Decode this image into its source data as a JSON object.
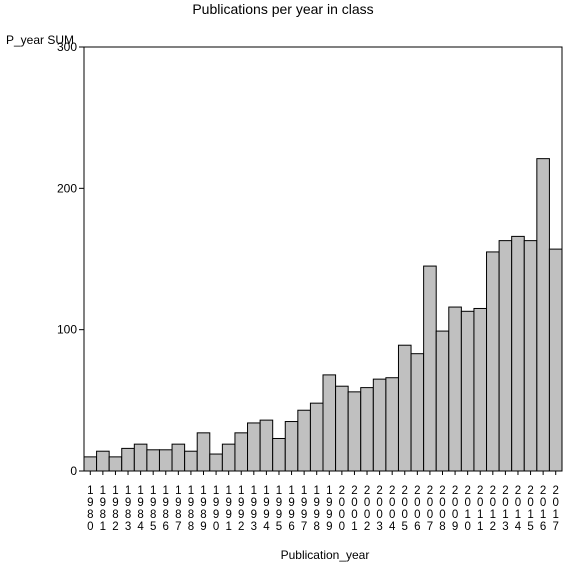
{
  "chart_data": {
    "type": "bar",
    "title": "Publications per year in class",
    "ylabel": "P_year SUM",
    "xlabel": "Publication_year",
    "ylim": [
      0,
      300
    ],
    "yticks": [
      0,
      100,
      200,
      300
    ],
    "grid": false,
    "bar_color": "#c0c0c0",
    "categories": [
      "1980",
      "1981",
      "1982",
      "1983",
      "1984",
      "1985",
      "1986",
      "1987",
      "1988",
      "1989",
      "1990",
      "1991",
      "1992",
      "1993",
      "1994",
      "1995",
      "1996",
      "1997",
      "1998",
      "1999",
      "2000",
      "2001",
      "2002",
      "2003",
      "2004",
      "2005",
      "2006",
      "2007",
      "2008",
      "2009",
      "2010",
      "2011",
      "2012",
      "2013",
      "2014",
      "2015",
      "2016",
      "2017"
    ],
    "values": [
      10,
      14,
      10,
      16,
      19,
      15,
      15,
      19,
      14,
      27,
      12,
      19,
      27,
      34,
      36,
      23,
      35,
      43,
      48,
      68,
      60,
      56,
      59,
      65,
      66,
      89,
      83,
      145,
      99,
      116,
      113,
      115,
      155,
      163,
      166,
      163,
      221,
      157
    ]
  }
}
